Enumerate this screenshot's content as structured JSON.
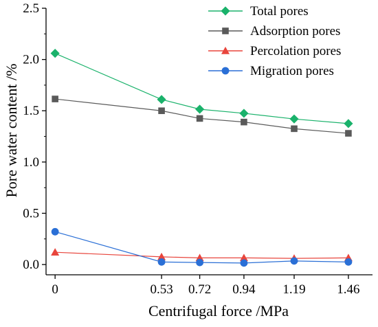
{
  "chart_data": {
    "type": "line",
    "xlabel": "Centrifugal force /MPa",
    "ylabel": "Pore water content /%",
    "x": [
      0,
      0.53,
      0.72,
      0.94,
      1.19,
      1.46
    ],
    "x_tick_labels": [
      "0",
      "0.53",
      "0.72",
      "0.94",
      "1.19",
      "1.46"
    ],
    "y_tick_labels": [
      "0.0",
      "0.5",
      "1.0",
      "1.5",
      "2.0",
      "2.5"
    ],
    "y_ticks": [
      0,
      0.5,
      1.0,
      1.5,
      2.0,
      2.5
    ],
    "ylim": [
      -0.1,
      2.5
    ],
    "legend_placement": "top-right",
    "grid": false,
    "series": [
      {
        "name": "Total pores",
        "values": [
          2.06,
          1.61,
          1.515,
          1.475,
          1.42,
          1.375
        ],
        "color": "#1ab26b",
        "marker": "diamond"
      },
      {
        "name": "Adsorption pores",
        "values": [
          1.615,
          1.5,
          1.425,
          1.39,
          1.325,
          1.28
        ],
        "color": "#5a5a5a",
        "marker": "square"
      },
      {
        "name": "Percolation pores",
        "values": [
          0.12,
          0.075,
          0.065,
          0.065,
          0.06,
          0.065
        ],
        "color": "#e8453c",
        "marker": "triangle"
      },
      {
        "name": "Migration pores",
        "values": [
          0.32,
          0.025,
          0.02,
          0.015,
          0.035,
          0.025
        ],
        "color": "#2a6fd6",
        "marker": "circle"
      }
    ]
  }
}
